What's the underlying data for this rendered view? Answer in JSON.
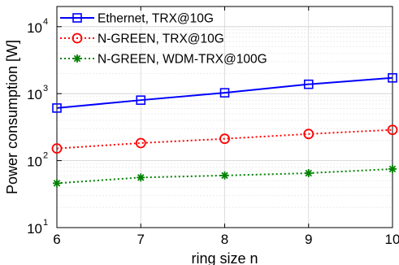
{
  "chart_data": {
    "type": "line",
    "xlabel": "ring size n",
    "ylabel": "Power consumption [W]",
    "x": [
      6,
      7,
      8,
      9,
      10
    ],
    "xlim": [
      6,
      10
    ],
    "ylim": [
      10,
      20000
    ],
    "yscale": "log",
    "grid": true,
    "legend_position": "top-left",
    "x_tick_labels": [
      "6",
      "7",
      "8",
      "9",
      "10"
    ],
    "y_tick_labels": [
      {
        "base": "10",
        "exp": "1"
      },
      {
        "base": "10",
        "exp": "2"
      },
      {
        "base": "10",
        "exp": "3"
      },
      {
        "base": "10",
        "exp": "4"
      }
    ],
    "series": [
      {
        "name": "Ethernet, TRX@10G",
        "values": [
          610,
          800,
          1030,
          1380,
          1720
        ],
        "color": "#0000ff",
        "line_style": "solid",
        "marker": "square"
      },
      {
        "name": "N-GREEN, TRX@10G",
        "values": [
          152,
          183,
          212,
          250,
          288
        ],
        "color": "#ff0000",
        "line_style": "dotted",
        "marker": "circle"
      },
      {
        "name": "N-GREEN, WDM-TRX@100G",
        "values": [
          46,
          56,
          60,
          65,
          75
        ],
        "color": "#008000",
        "line_style": "dotted",
        "marker": "asterisk"
      }
    ]
  }
}
